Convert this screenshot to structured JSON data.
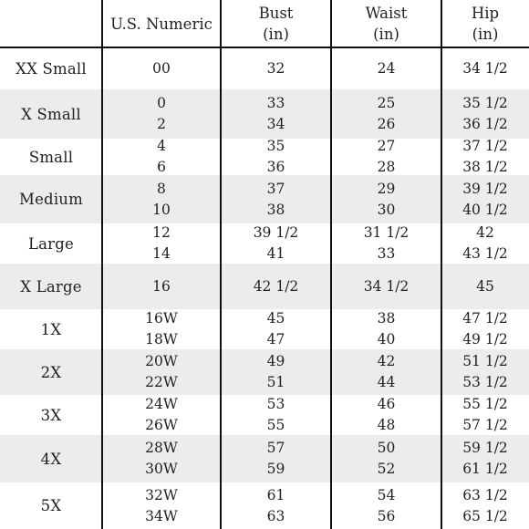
{
  "header": {
    "size": "",
    "numeric": "U.S. Numeric",
    "bust": "Bust",
    "bust_unit": "(in)",
    "waist": "Waist",
    "waist_unit": "(in)",
    "hip": "Hip",
    "hip_unit": "(in)"
  },
  "rows": [
    {
      "size": "XX Small",
      "numeric": [
        "00"
      ],
      "bust": [
        "32"
      ],
      "waist": [
        "24"
      ],
      "hip": [
        "34 1/2"
      ]
    },
    {
      "size": "X Small",
      "numeric": [
        "0",
        "2"
      ],
      "bust": [
        "33",
        "34"
      ],
      "waist": [
        "25",
        "26"
      ],
      "hip": [
        "35 1/2",
        "36 1/2"
      ]
    },
    {
      "size": "Small",
      "numeric": [
        "4",
        "6"
      ],
      "bust": [
        "35",
        "36"
      ],
      "waist": [
        "27",
        "28"
      ],
      "hip": [
        "37 1/2",
        "38 1/2"
      ]
    },
    {
      "size": "Medium",
      "numeric": [
        "8",
        "10"
      ],
      "bust": [
        "37",
        "38"
      ],
      "waist": [
        "29",
        "30"
      ],
      "hip": [
        "39 1/2",
        "40 1/2"
      ]
    },
    {
      "size": "Large",
      "numeric": [
        "12",
        "14"
      ],
      "bust": [
        "39 1/2",
        "41"
      ],
      "waist": [
        "31 1/2",
        "33"
      ],
      "hip": [
        "42",
        "43 1/2"
      ]
    },
    {
      "size": "X Large",
      "numeric": [
        "16"
      ],
      "bust": [
        "42 1/2"
      ],
      "waist": [
        "34 1/2"
      ],
      "hip": [
        "45"
      ]
    },
    {
      "size": "1X",
      "numeric": [
        "16W",
        "18W"
      ],
      "bust": [
        "45",
        "47"
      ],
      "waist": [
        "38",
        "40"
      ],
      "hip": [
        "47 1/2",
        "49 1/2"
      ]
    },
    {
      "size": "2X",
      "numeric": [
        "20W",
        "22W"
      ],
      "bust": [
        "49",
        "51"
      ],
      "waist": [
        "42",
        "44"
      ],
      "hip": [
        "51 1/2",
        "53 1/2"
      ]
    },
    {
      "size": "3X",
      "numeric": [
        "24W",
        "26W"
      ],
      "bust": [
        "53",
        "55"
      ],
      "waist": [
        "46",
        "48"
      ],
      "hip": [
        "55 1/2",
        "57 1/2"
      ]
    },
    {
      "size": "4X",
      "numeric": [
        "28W",
        "30W"
      ],
      "bust": [
        "57",
        "59"
      ],
      "waist": [
        "50",
        "52"
      ],
      "hip": [
        "59 1/2",
        "61 1/2"
      ]
    },
    {
      "size": "5X",
      "numeric": [
        "32W",
        "34W"
      ],
      "bust": [
        "61",
        "63"
      ],
      "waist": [
        "54",
        "56"
      ],
      "hip": [
        "63 1/2",
        "65 1/2"
      ]
    }
  ],
  "colors": {
    "band": "#ececec",
    "rule": "#111111",
    "text": "#222222",
    "background": "#ffffff"
  }
}
